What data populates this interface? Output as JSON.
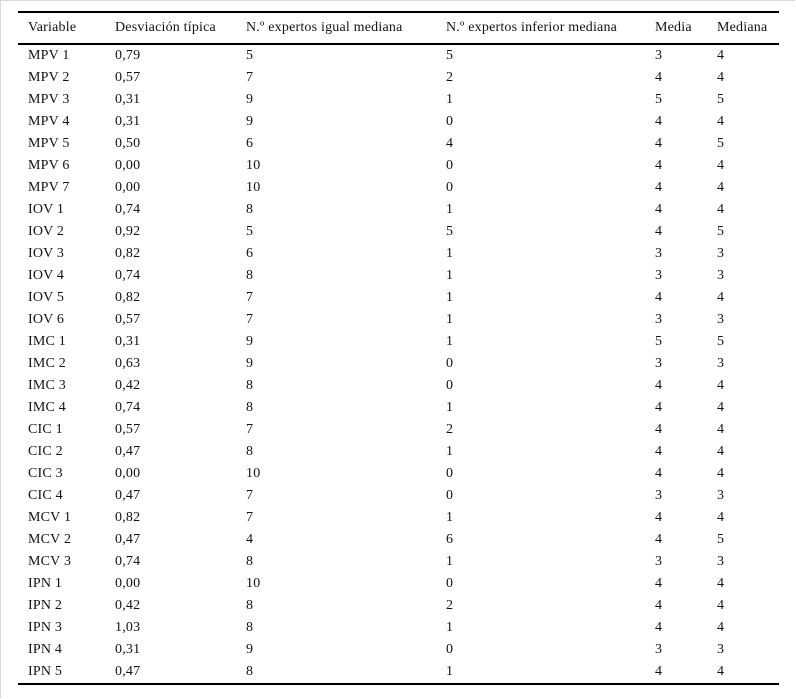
{
  "table": {
    "columns": [
      "Variable",
      "Desviación típica",
      "N.º expertos igual mediana",
      "N.º expertos inferior mediana",
      "Media",
      "Mediana"
    ],
    "rows": [
      [
        "MPV 1",
        "0,79",
        "5",
        "5",
        "3",
        "4"
      ],
      [
        "MPV 2",
        "0,57",
        "7",
        "2",
        "4",
        "4"
      ],
      [
        "MPV 3",
        "0,31",
        "9",
        "1",
        "5",
        "5"
      ],
      [
        "MPV 4",
        "0,31",
        "9",
        "0",
        "4",
        "4"
      ],
      [
        "MPV 5",
        "0,50",
        "6",
        "4",
        "4",
        "5"
      ],
      [
        "MPV 6",
        "0,00",
        "10",
        "0",
        "4",
        "4"
      ],
      [
        "MPV 7",
        "0,00",
        "10",
        "0",
        "4",
        "4"
      ],
      [
        "IOV 1",
        "0,74",
        "8",
        "1",
        "4",
        "4"
      ],
      [
        "IOV 2",
        "0,92",
        "5",
        "5",
        "4",
        "5"
      ],
      [
        "IOV 3",
        "0,82",
        "6",
        "1",
        "3",
        "3"
      ],
      [
        "IOV 4",
        "0,74",
        "8",
        "1",
        "3",
        "3"
      ],
      [
        "IOV 5",
        "0,82",
        "7",
        "1",
        "4",
        "4"
      ],
      [
        "IOV 6",
        "0,57",
        "7",
        "1",
        "3",
        "3"
      ],
      [
        "IMC 1",
        "0,31",
        "9",
        "1",
        "5",
        "5"
      ],
      [
        "IMC 2",
        "0,63",
        "9",
        "0",
        "3",
        "3"
      ],
      [
        "IMC 3",
        "0,42",
        "8",
        "0",
        "4",
        "4"
      ],
      [
        "IMC 4",
        "0,74",
        "8",
        "1",
        "4",
        "4"
      ],
      [
        "CIC 1",
        "0,57",
        "7",
        "2",
        "4",
        "4"
      ],
      [
        "CIC 2",
        "0,47",
        "8",
        "1",
        "4",
        "4"
      ],
      [
        "CIC 3",
        "0,00",
        "10",
        "0",
        "4",
        "4"
      ],
      [
        "CIC 4",
        "0,47",
        "7",
        "0",
        "3",
        "3"
      ],
      [
        "MCV 1",
        "0,82",
        "7",
        "1",
        "4",
        "4"
      ],
      [
        "MCV 2",
        "0,47",
        "4",
        "6",
        "4",
        "5"
      ],
      [
        "MCV 3",
        "0,74",
        "8",
        "1",
        "3",
        "3"
      ],
      [
        "IPN 1",
        "0,00",
        "10",
        "0",
        "4",
        "4"
      ],
      [
        "IPN 2",
        "0,42",
        "8",
        "2",
        "4",
        "4"
      ],
      [
        "IPN 3",
        "1,03",
        "8",
        "1",
        "4",
        "4"
      ],
      [
        "IPN 4",
        "0,31",
        "9",
        "0",
        "3",
        "3"
      ],
      [
        "IPN 5",
        "0,47",
        "8",
        "1",
        "4",
        "4"
      ]
    ]
  },
  "chart_data": {
    "type": "table",
    "title": "",
    "columns": [
      "Variable",
      "Desviación típica",
      "N.º expertos igual mediana",
      "N.º expertos inferior mediana",
      "Media",
      "Mediana"
    ],
    "rows": [
      [
        "MPV 1",
        0.79,
        5,
        5,
        3,
        4
      ],
      [
        "MPV 2",
        0.57,
        7,
        2,
        4,
        4
      ],
      [
        "MPV 3",
        0.31,
        9,
        1,
        5,
        5
      ],
      [
        "MPV 4",
        0.31,
        9,
        0,
        4,
        4
      ],
      [
        "MPV 5",
        0.5,
        6,
        4,
        4,
        5
      ],
      [
        "MPV 6",
        0.0,
        10,
        0,
        4,
        4
      ],
      [
        "MPV 7",
        0.0,
        10,
        0,
        4,
        4
      ],
      [
        "IOV 1",
        0.74,
        8,
        1,
        4,
        4
      ],
      [
        "IOV 2",
        0.92,
        5,
        5,
        4,
        5
      ],
      [
        "IOV 3",
        0.82,
        6,
        1,
        3,
        3
      ],
      [
        "IOV 4",
        0.74,
        8,
        1,
        3,
        3
      ],
      [
        "IOV 5",
        0.82,
        7,
        1,
        4,
        4
      ],
      [
        "IOV 6",
        0.57,
        7,
        1,
        3,
        3
      ],
      [
        "IMC 1",
        0.31,
        9,
        1,
        5,
        5
      ],
      [
        "IMC 2",
        0.63,
        9,
        0,
        3,
        3
      ],
      [
        "IMC 3",
        0.42,
        8,
        0,
        4,
        4
      ],
      [
        "IMC 4",
        0.74,
        8,
        1,
        4,
        4
      ],
      [
        "CIC 1",
        0.57,
        7,
        2,
        4,
        4
      ],
      [
        "CIC 2",
        0.47,
        8,
        1,
        4,
        4
      ],
      [
        "CIC 3",
        0.0,
        10,
        0,
        4,
        4
      ],
      [
        "CIC 4",
        0.47,
        7,
        0,
        3,
        3
      ],
      [
        "MCV 1",
        0.82,
        7,
        1,
        4,
        4
      ],
      [
        "MCV 2",
        0.47,
        4,
        6,
        4,
        5
      ],
      [
        "MCV 3",
        0.74,
        8,
        1,
        3,
        3
      ],
      [
        "IPN 1",
        0.0,
        10,
        0,
        4,
        4
      ],
      [
        "IPN 2",
        0.42,
        8,
        2,
        4,
        4
      ],
      [
        "IPN 3",
        1.03,
        8,
        1,
        4,
        4
      ],
      [
        "IPN 4",
        0.31,
        9,
        0,
        3,
        3
      ],
      [
        "IPN 5",
        0.47,
        8,
        1,
        4,
        4
      ]
    ]
  },
  "colors": {
    "text": "#121212",
    "rule": "#000000",
    "background": "#ffffff",
    "page_edge": "#d9d9d9"
  }
}
